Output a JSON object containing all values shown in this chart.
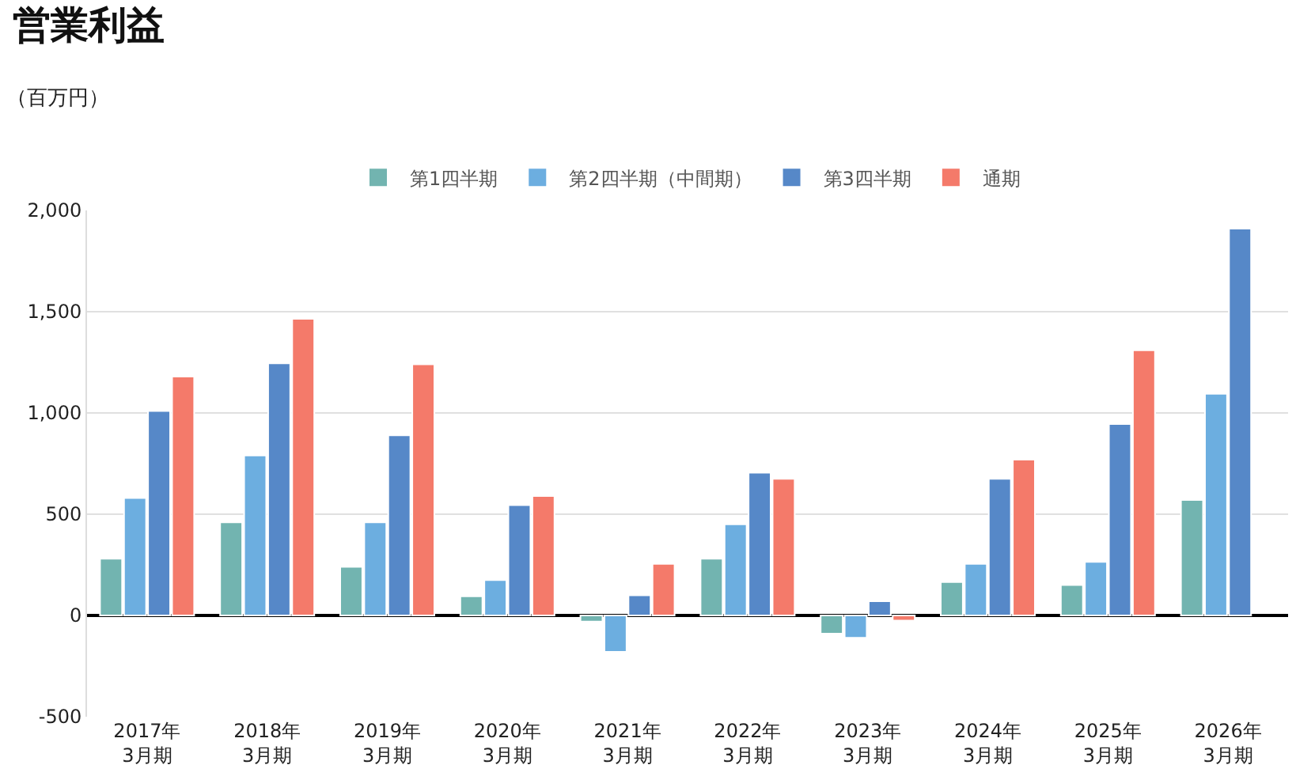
{
  "chart_data": {
    "type": "bar",
    "title": "営業利益",
    "ylabel": "（百万円）",
    "categories": [
      "2017年\n3月期",
      "2018年\n3月期",
      "2019年\n3月期",
      "2020年\n3月期",
      "2021年\n3月期",
      "2022年\n3月期",
      "2023年\n3月期",
      "2024年\n3月期",
      "2025年\n3月期",
      "2026年\n3月期"
    ],
    "series": [
      {
        "name": "第1四半期",
        "color": "#72b4b0",
        "values": [
          280,
          460,
          240,
          95,
          -30,
          280,
          -90,
          165,
          150,
          570
        ]
      },
      {
        "name": "第2四半期（中間期）",
        "color": "#6caee0",
        "values": [
          580,
          790,
          460,
          175,
          -180,
          450,
          -110,
          255,
          265,
          1095
        ]
      },
      {
        "name": "第3四半期",
        "color": "#5688c8",
        "values": [
          1010,
          1245,
          890,
          545,
          100,
          705,
          70,
          675,
          945,
          1910
        ]
      },
      {
        "name": "通期",
        "color": "#f47a6a",
        "values": [
          1180,
          1465,
          1240,
          590,
          255,
          675,
          -25,
          770,
          1310,
          null
        ]
      }
    ],
    "ylim": [
      -500,
      2000
    ],
    "yticks": [
      {
        "value": -500,
        "label": "-500"
      },
      0,
      500,
      {
        "value": 1000,
        "label": "1,000"
      },
      {
        "value": 1500,
        "label": "1,500"
      },
      {
        "value": 2000,
        "label": "2,000"
      }
    ],
    "grid": "y",
    "legend": "top"
  }
}
